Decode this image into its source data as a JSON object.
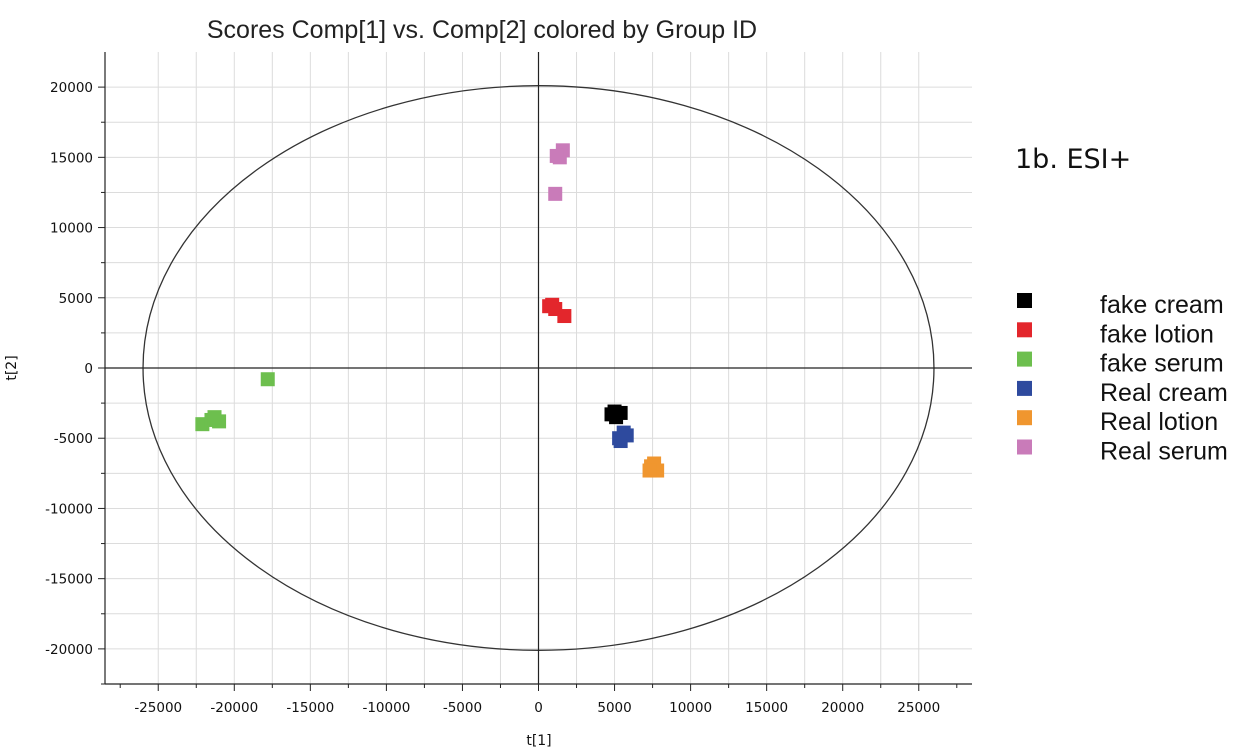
{
  "chart_data": {
    "type": "scatter",
    "title": "Scores Comp[1] vs. Comp[2] colored by Group ID",
    "xlabel": "t[1]",
    "ylabel": "t[2]",
    "xlim": [
      -28500,
      28500
    ],
    "ylim": [
      -22500,
      22500
    ],
    "xticks": [
      -25000,
      -20000,
      -15000,
      -10000,
      -5000,
      0,
      5000,
      10000,
      15000,
      20000,
      25000
    ],
    "yticks": [
      -20000,
      -15000,
      -10000,
      -5000,
      0,
      5000,
      10000,
      15000,
      20000
    ],
    "grid": true,
    "legend_position": "right",
    "annotation": "1b. ESI+",
    "ellipse": {
      "cx": 0,
      "cy": 0,
      "rx": 26000,
      "ry": 20100
    },
    "series": [
      {
        "name": "fake cream",
        "color": "#000000",
        "points": [
          [
            4800,
            -3300
          ],
          [
            5100,
            -3500
          ],
          [
            5400,
            -3200
          ],
          [
            5000,
            -3100
          ]
        ]
      },
      {
        "name": "fake lotion",
        "color": "#e3262c",
        "points": [
          [
            700,
            4400
          ],
          [
            1100,
            4200
          ],
          [
            1700,
            3700
          ],
          [
            900,
            4500
          ]
        ]
      },
      {
        "name": "fake serum",
        "color": "#6dbf4e",
        "points": [
          [
            -17800,
            -800
          ],
          [
            -22100,
            -4000
          ],
          [
            -21500,
            -3700
          ],
          [
            -21000,
            -3800
          ],
          [
            -21300,
            -3500
          ]
        ]
      },
      {
        "name": "Real cream",
        "color": "#2e4a9e",
        "points": [
          [
            5400,
            -5200
          ],
          [
            5800,
            -4800
          ],
          [
            5600,
            -4600
          ],
          [
            5300,
            -5000
          ]
        ]
      },
      {
        "name": "Real lotion",
        "color": "#f0962f",
        "points": [
          [
            7400,
            -7000
          ],
          [
            7800,
            -7300
          ],
          [
            7600,
            -6800
          ],
          [
            7300,
            -7300
          ]
        ]
      },
      {
        "name": "Real serum",
        "color": "#c97bb9",
        "points": [
          [
            1600,
            15500
          ],
          [
            1400,
            15000
          ],
          [
            1200,
            15100
          ],
          [
            1100,
            12400
          ]
        ]
      }
    ]
  }
}
